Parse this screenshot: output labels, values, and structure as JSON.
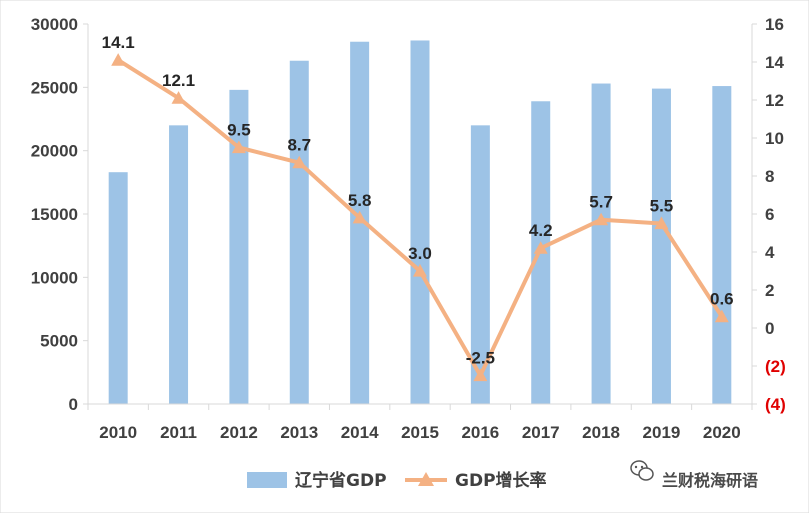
{
  "chart_data": {
    "type": "bar+line",
    "categories": [
      "2010",
      "2011",
      "2012",
      "2013",
      "2014",
      "2015",
      "2016",
      "2017",
      "2018",
      "2019",
      "2020"
    ],
    "series": [
      {
        "name": "辽宁省GDP",
        "type": "bar",
        "axis": "left",
        "values": [
          18300,
          22000,
          24800,
          27100,
          28600,
          28700,
          22000,
          23900,
          25300,
          24900,
          25100
        ]
      },
      {
        "name": "GDP增长率",
        "type": "line",
        "axis": "right",
        "values": [
          14.1,
          12.1,
          9.5,
          8.7,
          5.8,
          3.0,
          -2.5,
          4.2,
          5.7,
          5.5,
          0.6
        ],
        "labels": [
          "14.1",
          "12.1",
          "9.5",
          "8.7",
          "5.8",
          "3.0",
          "-2.5",
          "4.2",
          "5.7",
          "5.5",
          "0.6"
        ]
      }
    ],
    "left_axis": {
      "min": 0,
      "max": 30000,
      "ticks": [
        "0",
        "5000",
        "10000",
        "15000",
        "20000",
        "25000",
        "30000"
      ]
    },
    "right_axis": {
      "min": -4,
      "max": 16,
      "ticks": [
        "(4)",
        "(2)",
        "0",
        "2",
        "4",
        "6",
        "8",
        "10",
        "12",
        "14",
        "16"
      ]
    },
    "colors": {
      "bar": "#9dc3e6",
      "line": "#f4b183",
      "negative_tick": "#e00000",
      "axis": "#d9d9d9"
    },
    "legend": {
      "position": "bottom",
      "items": [
        "辽宁省GDP",
        "GDP增长率"
      ]
    },
    "grid": false
  },
  "watermark": {
    "text": "兰财税海研语",
    "icon": "wechat-icon"
  }
}
